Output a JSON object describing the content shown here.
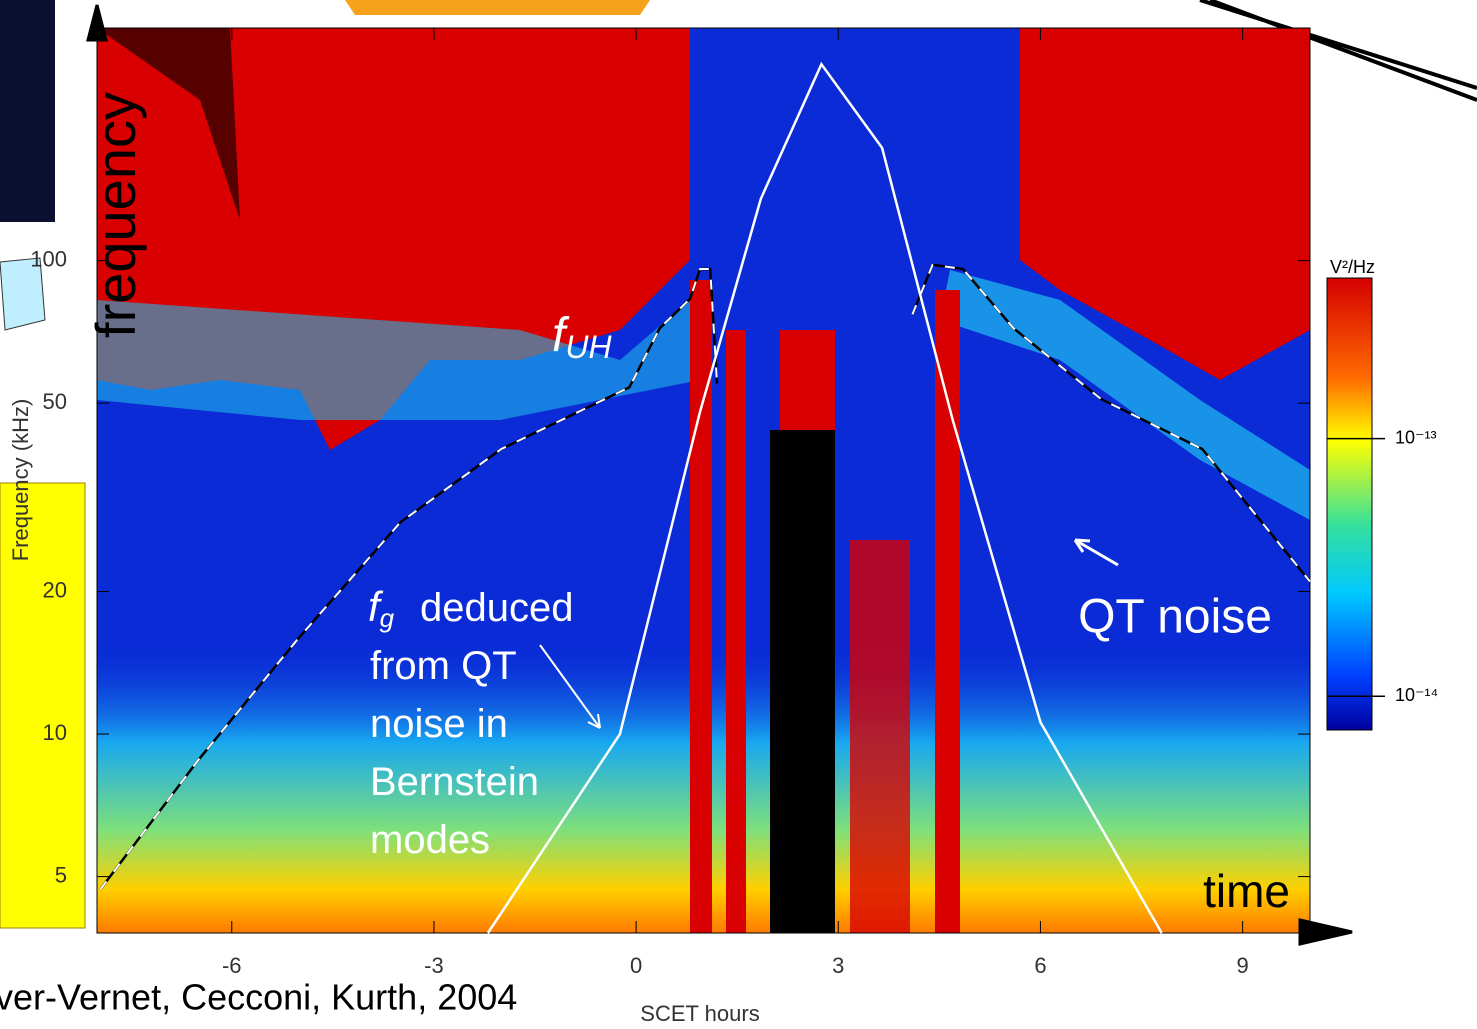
{
  "chart_data": {
    "type": "spectrogram",
    "x_label": "SCET hours",
    "y_label": "Frequency (kHz)",
    "xlim": [
      -8,
      10
    ],
    "xticks": [
      -6,
      -3,
      0,
      3,
      6,
      9
    ],
    "ylim": [
      3.8,
      310
    ],
    "yticks": [
      5,
      10,
      20,
      50,
      100
    ],
    "y_log": true,
    "colorbar": {
      "label": "V²/Hz",
      "lim": [
        7.4e-15,
        4.2e-13
      ],
      "log": true,
      "ticks": [
        {
          "value": 1e-13,
          "label": "10⁻¹³"
        },
        {
          "value": 1e-14,
          "label": "10⁻¹⁴"
        }
      ]
    },
    "series": [
      {
        "color": "#000000",
        "dashed": true,
        "x": [
          -7.95,
          -6.5,
          -5,
          -3.5,
          -2,
          -0.1,
          0.35,
          0.8,
          0.95,
          1.1,
          1.2
        ],
        "values": [
          4.7,
          8.8,
          16,
          28,
          40,
          54,
          72,
          83,
          96,
          96,
          55
        ]
      },
      {
        "color": "#000000",
        "dashed": true,
        "x": [
          4.1,
          4.4,
          4.85,
          5.6,
          6.9,
          8.4,
          10
        ],
        "values": [
          77,
          98,
          96,
          72,
          51,
          40,
          21
        ]
      },
      {
        "color": "#ffffff",
        "dashed": false,
        "x": [
          -2.2,
          -0.24,
          0.95,
          1.85,
          2.75,
          3.65,
          4.7,
          6,
          7.8
        ],
        "values": [
          3.8,
          10,
          48,
          135,
          260,
          173,
          46,
          10.6,
          3.8
        ]
      }
    ],
    "annotations": {
      "axis_frequency": "frequency",
      "axis_time": "time",
      "f_uh": {
        "symbol": "f",
        "subscript": "UH"
      },
      "f_g": {
        "symbol": "f",
        "subscript": "g",
        "lines": [
          "deduced",
          "from QT",
          "noise in",
          "Bernstein",
          "modes"
        ]
      },
      "qt_noise": "QT noise",
      "citation": "ver-Vernet, Cecconi, Kurth, 2004"
    }
  }
}
